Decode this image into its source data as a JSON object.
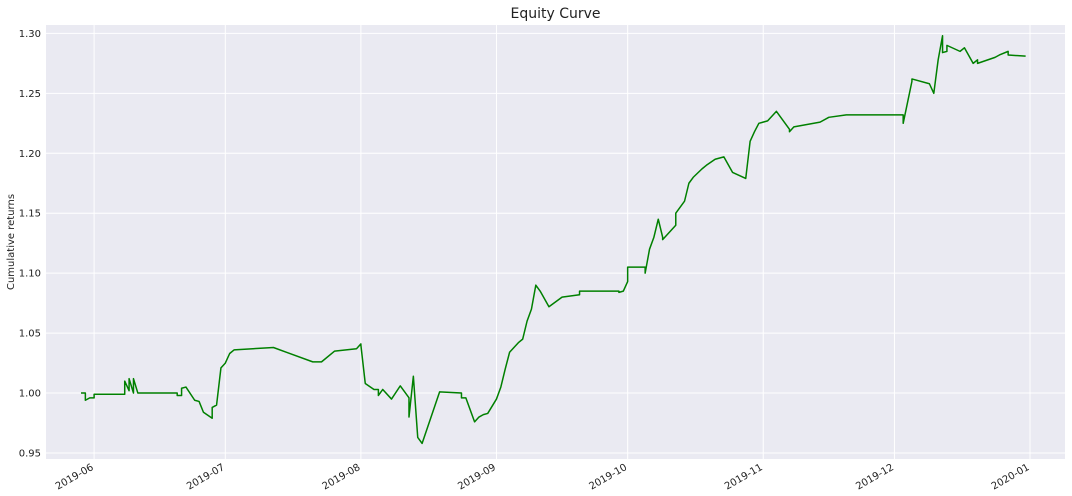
{
  "chart_data": {
    "type": "line",
    "title": "Equity Curve",
    "xlabel": "",
    "ylabel": "Cumulative returns",
    "x_axis": "date",
    "xlim": [
      "2019-05-21",
      "2020-01-09"
    ],
    "ylim": [
      0.945,
      1.307
    ],
    "x_ticks": [
      "2019-06",
      "2019-07",
      "2019-08",
      "2019-09",
      "2019-10",
      "2019-11",
      "2019-12",
      "2020-01"
    ],
    "x_tick_dates": [
      "2019-06-01",
      "2019-07-01",
      "2019-08-01",
      "2019-09-01",
      "2019-10-01",
      "2019-11-01",
      "2019-12-01",
      "2020-01-01"
    ],
    "y_ticks": [
      0.95,
      1.0,
      1.05,
      1.1,
      1.15,
      1.2,
      1.25,
      1.3
    ],
    "y_tick_labels": [
      "0.95",
      "1.00",
      "1.05",
      "1.10",
      "1.15",
      "1.20",
      "1.25",
      "1.30"
    ],
    "grid": true,
    "legend": "none",
    "series": [
      {
        "color": "#008000",
        "x": [
          "2019-05-29",
          "2019-05-30",
          "2019-05-30",
          "2019-05-31",
          "2019-06-01",
          "2019-06-01",
          "2019-06-08",
          "2019-06-08",
          "2019-06-09",
          "2019-06-09",
          "2019-06-10",
          "2019-06-10",
          "2019-06-11",
          "2019-06-11",
          "2019-06-12",
          "2019-06-20",
          "2019-06-20",
          "2019-06-21",
          "2019-06-21",
          "2019-06-22",
          "2019-06-24",
          "2019-06-25",
          "2019-06-25",
          "2019-06-26",
          "2019-06-28",
          "2019-06-28",
          "2019-06-29",
          "2019-06-30",
          "2019-07-01",
          "2019-07-02",
          "2019-07-03",
          "2019-07-12",
          "2019-07-15",
          "2019-07-21",
          "2019-07-23",
          "2019-07-26",
          "2019-07-31",
          "2019-08-01",
          "2019-08-01",
          "2019-08-02",
          "2019-08-04",
          "2019-08-05",
          "2019-08-05",
          "2019-08-06",
          "2019-08-08",
          "2019-08-10",
          "2019-08-12",
          "2019-08-12",
          "2019-08-13",
          "2019-08-14",
          "2019-08-15",
          "2019-08-19",
          "2019-08-24",
          "2019-08-24",
          "2019-08-25",
          "2019-08-27",
          "2019-08-28",
          "2019-08-29",
          "2019-08-30",
          "2019-09-01",
          "2019-09-02",
          "2019-09-03",
          "2019-09-04",
          "2019-09-05",
          "2019-09-06",
          "2019-09-07",
          "2019-09-08",
          "2019-09-09",
          "2019-09-10",
          "2019-09-11",
          "2019-09-13",
          "2019-09-16",
          "2019-09-20",
          "2019-09-20",
          "2019-09-29",
          "2019-09-29",
          "2019-09-30",
          "2019-10-01",
          "2019-10-01",
          "2019-10-05",
          "2019-10-05",
          "2019-10-06",
          "2019-10-07",
          "2019-10-08",
          "2019-10-09",
          "2019-10-09",
          "2019-10-12",
          "2019-10-12",
          "2019-10-14",
          "2019-10-15",
          "2019-10-16",
          "2019-10-18",
          "2019-10-19",
          "2019-10-21",
          "2019-10-23",
          "2019-10-25",
          "2019-10-28",
          "2019-10-29",
          "2019-10-30",
          "2019-10-31",
          "2019-11-02",
          "2019-11-04",
          "2019-11-07",
          "2019-11-07",
          "2019-11-08",
          "2019-11-14",
          "2019-11-16",
          "2019-11-20",
          "2019-12-03",
          "2019-12-03",
          "2019-12-05",
          "2019-12-05",
          "2019-12-09",
          "2019-12-10",
          "2019-12-11",
          "2019-12-12",
          "2019-12-12",
          "2019-12-13",
          "2019-12-13",
          "2019-12-16",
          "2019-12-17",
          "2019-12-19",
          "2019-12-20",
          "2019-12-20",
          "2019-12-24",
          "2019-12-25",
          "2019-12-27",
          "2019-12-27",
          "2019-12-31"
        ],
        "values": [
          1.0,
          1.0,
          0.994,
          0.996,
          0.996,
          0.999,
          0.999,
          1.01,
          1.002,
          1.012,
          1.0,
          1.012,
          1.0,
          1.0,
          1.0,
          1.0,
          0.998,
          0.998,
          1.004,
          1.005,
          0.994,
          0.993,
          0.993,
          0.984,
          0.979,
          0.988,
          0.99,
          1.021,
          1.025,
          1.033,
          1.036,
          1.038,
          1.034,
          1.026,
          1.026,
          1.035,
          1.037,
          1.041,
          1.04,
          1.008,
          1.003,
          1.003,
          0.998,
          1.003,
          0.995,
          1.006,
          0.996,
          0.98,
          1.014,
          0.963,
          0.958,
          1.001,
          1.0,
          0.996,
          0.996,
          0.976,
          0.98,
          0.982,
          0.983,
          0.995,
          1.005,
          1.02,
          1.034,
          1.038,
          1.042,
          1.045,
          1.06,
          1.07,
          1.09,
          1.085,
          1.072,
          1.08,
          1.082,
          1.085,
          1.085,
          1.084,
          1.085,
          1.093,
          1.105,
          1.105,
          1.1,
          1.12,
          1.13,
          1.145,
          1.13,
          1.128,
          1.14,
          1.15,
          1.16,
          1.175,
          1.18,
          1.187,
          1.19,
          1.195,
          1.197,
          1.184,
          1.179,
          1.21,
          1.218,
          1.225,
          1.227,
          1.235,
          1.22,
          1.218,
          1.222,
          1.226,
          1.23,
          1.232,
          1.232,
          1.225,
          1.26,
          1.262,
          1.258,
          1.25,
          1.278,
          1.298,
          1.284,
          1.285,
          1.29,
          1.285,
          1.288,
          1.275,
          1.278,
          1.275,
          1.28,
          1.282,
          1.285,
          1.282,
          1.281
        ]
      }
    ]
  }
}
